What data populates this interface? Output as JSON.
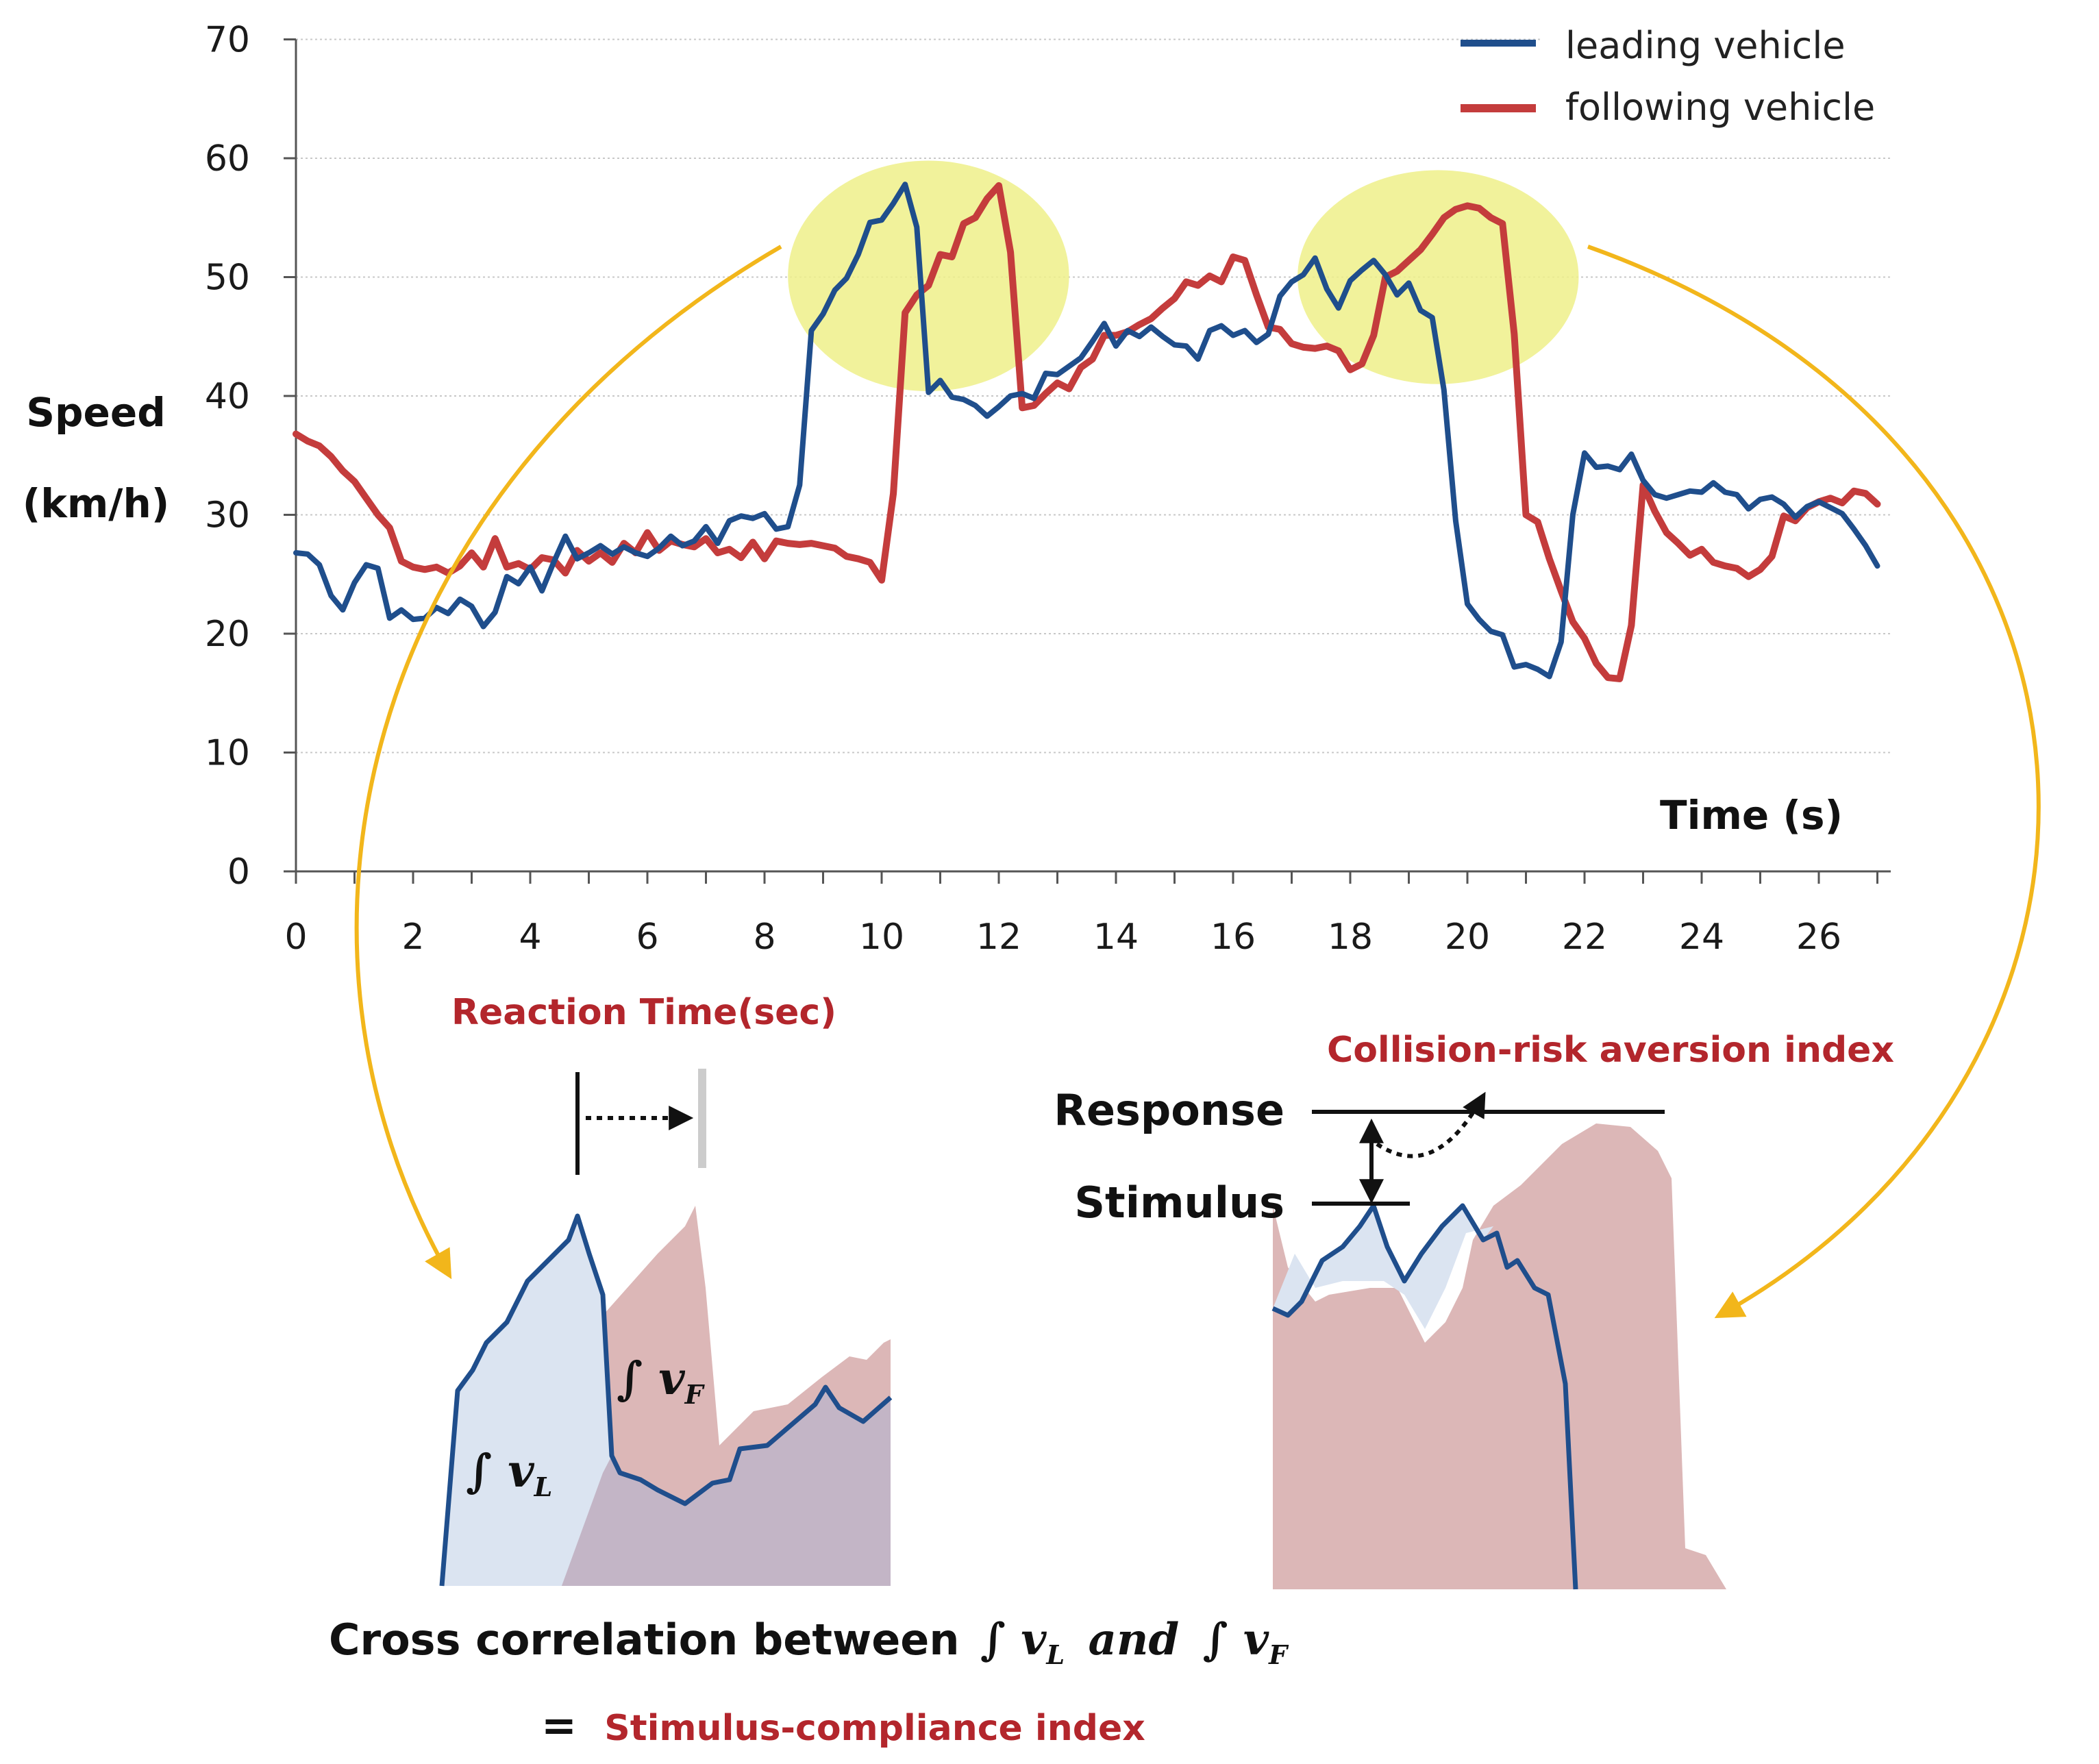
{
  "chart_data": {
    "type": "line",
    "xlabel": "Time (s)",
    "ylabel_line1": "Speed",
    "ylabel_line2": "(km/h)",
    "xlim": [
      0,
      27.2
    ],
    "ylim": [
      0,
      70
    ],
    "xticks": [
      0,
      2,
      4,
      6,
      8,
      10,
      12,
      14,
      16,
      18,
      20,
      22,
      24,
      26
    ],
    "yticks": [
      0,
      10,
      20,
      30,
      40,
      50,
      60,
      70
    ],
    "grid": "horizontal dotted",
    "legend_position": "top-right",
    "series": [
      {
        "name": "leading vehicle",
        "color": "#1f4e8c",
        "points": [
          [
            0,
            26.8
          ],
          [
            0.2,
            26.7
          ],
          [
            0.4,
            25.8
          ],
          [
            0.6,
            23.2
          ],
          [
            0.8,
            22.0
          ],
          [
            1.0,
            24.3
          ],
          [
            1.2,
            25.8
          ],
          [
            1.4,
            25.5
          ],
          [
            1.6,
            21.3
          ],
          [
            1.8,
            22.0
          ],
          [
            2.0,
            21.2
          ],
          [
            2.2,
            21.3
          ],
          [
            2.4,
            22.2
          ],
          [
            2.6,
            21.7
          ],
          [
            2.8,
            22.9
          ],
          [
            3.0,
            22.3
          ],
          [
            3.2,
            20.6
          ],
          [
            3.4,
            21.8
          ],
          [
            3.6,
            24.8
          ],
          [
            3.8,
            24.2
          ],
          [
            4.0,
            25.6
          ],
          [
            4.2,
            23.6
          ],
          [
            4.4,
            26.0
          ],
          [
            4.6,
            28.2
          ],
          [
            4.8,
            26.3
          ],
          [
            5.0,
            26.8
          ],
          [
            5.2,
            27.4
          ],
          [
            5.4,
            26.7
          ],
          [
            5.6,
            27.3
          ],
          [
            5.8,
            26.8
          ],
          [
            6.0,
            26.5
          ],
          [
            6.2,
            27.2
          ],
          [
            6.4,
            28.2
          ],
          [
            6.6,
            27.4
          ],
          [
            6.8,
            27.8
          ],
          [
            7.0,
            29.0
          ],
          [
            7.2,
            27.6
          ],
          [
            7.4,
            29.5
          ],
          [
            7.6,
            29.9
          ],
          [
            7.8,
            29.7
          ],
          [
            8.0,
            30.1
          ],
          [
            8.2,
            28.8
          ],
          [
            8.4,
            29.0
          ],
          [
            8.6,
            32.5
          ],
          [
            8.8,
            45.5
          ],
          [
            9.0,
            46.9
          ],
          [
            9.2,
            48.9
          ],
          [
            9.4,
            49.9
          ],
          [
            9.6,
            51.9
          ],
          [
            9.8,
            54.6
          ],
          [
            10.0,
            54.8
          ],
          [
            10.2,
            56.2
          ],
          [
            10.4,
            57.8
          ],
          [
            10.6,
            54.2
          ],
          [
            10.8,
            40.3
          ],
          [
            11.0,
            41.3
          ],
          [
            11.2,
            39.9
          ],
          [
            11.4,
            39.7
          ],
          [
            11.6,
            39.2
          ],
          [
            11.8,
            38.3
          ],
          [
            12.0,
            39.1
          ],
          [
            12.2,
            40.0
          ],
          [
            12.4,
            40.2
          ],
          [
            12.6,
            39.8
          ],
          [
            12.8,
            41.9
          ],
          [
            13.0,
            41.8
          ],
          [
            13.2,
            42.5
          ],
          [
            13.4,
            43.2
          ],
          [
            13.6,
            44.6
          ],
          [
            13.8,
            46.1
          ],
          [
            14.0,
            44.2
          ],
          [
            14.2,
            45.5
          ],
          [
            14.4,
            45.0
          ],
          [
            14.6,
            45.8
          ],
          [
            14.8,
            45.0
          ],
          [
            15.0,
            44.3
          ],
          [
            15.2,
            44.2
          ],
          [
            15.4,
            43.1
          ],
          [
            15.6,
            45.5
          ],
          [
            15.8,
            45.9
          ],
          [
            16.0,
            45.1
          ],
          [
            16.2,
            45.5
          ],
          [
            16.4,
            44.5
          ],
          [
            16.6,
            45.2
          ],
          [
            16.8,
            48.4
          ],
          [
            17.0,
            49.6
          ],
          [
            17.2,
            50.2
          ],
          [
            17.4,
            51.6
          ],
          [
            17.6,
            49.0
          ],
          [
            17.8,
            47.4
          ],
          [
            18.0,
            49.7
          ],
          [
            18.2,
            50.6
          ],
          [
            18.4,
            51.4
          ],
          [
            18.6,
            50.2
          ],
          [
            18.8,
            48.5
          ],
          [
            19.0,
            49.5
          ],
          [
            19.2,
            47.2
          ],
          [
            19.4,
            46.6
          ],
          [
            19.6,
            40.5
          ],
          [
            19.8,
            29.5
          ],
          [
            20.0,
            22.5
          ],
          [
            20.2,
            21.2
          ],
          [
            20.4,
            20.2
          ],
          [
            20.6,
            19.9
          ],
          [
            20.8,
            17.2
          ],
          [
            21.0,
            17.4
          ],
          [
            21.2,
            17.0
          ],
          [
            21.4,
            16.4
          ],
          [
            21.6,
            19.3
          ],
          [
            21.8,
            30.0
          ],
          [
            22.0,
            35.2
          ],
          [
            22.2,
            34.0
          ],
          [
            22.4,
            34.1
          ],
          [
            22.6,
            33.8
          ],
          [
            22.8,
            35.1
          ],
          [
            23.0,
            32.9
          ],
          [
            23.2,
            31.7
          ],
          [
            23.4,
            31.4
          ],
          [
            23.6,
            31.7
          ],
          [
            23.8,
            32.0
          ],
          [
            24.0,
            31.9
          ],
          [
            24.2,
            32.7
          ],
          [
            24.4,
            31.9
          ],
          [
            24.6,
            31.7
          ],
          [
            24.8,
            30.5
          ],
          [
            25.0,
            31.3
          ],
          [
            25.2,
            31.5
          ],
          [
            25.4,
            30.9
          ],
          [
            25.6,
            29.8
          ],
          [
            25.8,
            30.7
          ],
          [
            26.0,
            31.1
          ],
          [
            26.2,
            30.6
          ],
          [
            26.4,
            30.1
          ],
          [
            26.6,
            28.8
          ],
          [
            26.8,
            27.4
          ],
          [
            27.0,
            25.7
          ]
        ]
      },
      {
        "name": "following vehicle",
        "color": "#c43c3c",
        "points": [
          [
            0,
            36.8
          ],
          [
            0.2,
            36.2
          ],
          [
            0.4,
            35.8
          ],
          [
            0.6,
            34.9
          ],
          [
            0.8,
            33.7
          ],
          [
            1.0,
            32.8
          ],
          [
            1.2,
            31.4
          ],
          [
            1.4,
            30.0
          ],
          [
            1.6,
            28.9
          ],
          [
            1.8,
            26.1
          ],
          [
            2.0,
            25.6
          ],
          [
            2.2,
            25.4
          ],
          [
            2.4,
            25.6
          ],
          [
            2.6,
            25.1
          ],
          [
            2.8,
            25.7
          ],
          [
            3.0,
            26.8
          ],
          [
            3.2,
            25.6
          ],
          [
            3.4,
            28.0
          ],
          [
            3.6,
            25.6
          ],
          [
            3.8,
            25.9
          ],
          [
            4.0,
            25.4
          ],
          [
            4.2,
            26.4
          ],
          [
            4.4,
            26.2
          ],
          [
            4.6,
            25.1
          ],
          [
            4.8,
            27.0
          ],
          [
            5.0,
            26.1
          ],
          [
            5.2,
            26.8
          ],
          [
            5.4,
            26.0
          ],
          [
            5.6,
            27.6
          ],
          [
            5.8,
            26.8
          ],
          [
            6.0,
            28.5
          ],
          [
            6.2,
            27.0
          ],
          [
            6.4,
            27.8
          ],
          [
            6.6,
            27.5
          ],
          [
            6.8,
            27.3
          ],
          [
            7.0,
            28.0
          ],
          [
            7.2,
            26.8
          ],
          [
            7.4,
            27.1
          ],
          [
            7.6,
            26.4
          ],
          [
            7.8,
            27.7
          ],
          [
            8.0,
            26.3
          ],
          [
            8.2,
            27.8
          ],
          [
            8.4,
            27.6
          ],
          [
            8.6,
            27.5
          ],
          [
            8.8,
            27.6
          ],
          [
            9.0,
            27.4
          ],
          [
            9.2,
            27.2
          ],
          [
            9.4,
            26.5
          ],
          [
            9.6,
            26.3
          ],
          [
            9.8,
            26.0
          ],
          [
            10.0,
            24.5
          ],
          [
            10.2,
            31.8
          ],
          [
            10.4,
            47.0
          ],
          [
            10.6,
            48.5
          ],
          [
            10.8,
            49.3
          ],
          [
            11.0,
            51.9
          ],
          [
            11.2,
            51.7
          ],
          [
            11.4,
            54.5
          ],
          [
            11.6,
            55.0
          ],
          [
            11.8,
            56.6
          ],
          [
            12.0,
            57.7
          ],
          [
            12.2,
            52.1
          ],
          [
            12.4,
            39.0
          ],
          [
            12.6,
            39.2
          ],
          [
            12.8,
            40.2
          ],
          [
            13.0,
            41.1
          ],
          [
            13.2,
            40.6
          ],
          [
            13.4,
            42.4
          ],
          [
            13.6,
            43.1
          ],
          [
            13.8,
            45.1
          ],
          [
            14.0,
            45.1
          ],
          [
            14.2,
            45.4
          ],
          [
            14.4,
            46.0
          ],
          [
            14.6,
            46.5
          ],
          [
            14.8,
            47.4
          ],
          [
            15.0,
            48.2
          ],
          [
            15.2,
            49.6
          ],
          [
            15.4,
            49.3
          ],
          [
            15.6,
            50.1
          ],
          [
            15.8,
            49.6
          ],
          [
            16.0,
            51.7
          ],
          [
            16.2,
            51.4
          ],
          [
            16.4,
            48.5
          ],
          [
            16.6,
            45.8
          ],
          [
            16.8,
            45.6
          ],
          [
            17.0,
            44.4
          ],
          [
            17.2,
            44.1
          ],
          [
            17.4,
            44.0
          ],
          [
            17.6,
            44.2
          ],
          [
            17.8,
            43.8
          ],
          [
            18.0,
            42.2
          ],
          [
            18.2,
            42.7
          ],
          [
            18.4,
            45.1
          ],
          [
            18.6,
            50.0
          ],
          [
            18.8,
            50.5
          ],
          [
            19.0,
            51.4
          ],
          [
            19.2,
            52.3
          ],
          [
            19.4,
            53.6
          ],
          [
            19.6,
            55.0
          ],
          [
            19.8,
            55.7
          ],
          [
            20.0,
            56.0
          ],
          [
            20.2,
            55.8
          ],
          [
            20.4,
            55.0
          ],
          [
            20.6,
            54.5
          ],
          [
            20.8,
            45.2
          ],
          [
            21.0,
            30.0
          ],
          [
            21.2,
            29.4
          ],
          [
            21.4,
            26.3
          ],
          [
            21.6,
            23.6
          ],
          [
            21.8,
            21.0
          ],
          [
            22.0,
            19.6
          ],
          [
            22.2,
            17.5
          ],
          [
            22.4,
            16.3
          ],
          [
            22.6,
            16.2
          ],
          [
            22.8,
            20.7
          ],
          [
            23.0,
            32.5
          ],
          [
            23.2,
            30.3
          ],
          [
            23.4,
            28.5
          ],
          [
            23.6,
            27.6
          ],
          [
            23.8,
            26.6
          ],
          [
            24.0,
            27.1
          ],
          [
            24.2,
            26.0
          ],
          [
            24.4,
            25.7
          ],
          [
            24.6,
            25.5
          ],
          [
            24.8,
            24.8
          ],
          [
            25.0,
            25.4
          ],
          [
            25.2,
            26.5
          ],
          [
            25.4,
            29.9
          ],
          [
            25.6,
            29.5
          ],
          [
            25.8,
            30.6
          ],
          [
            26.0,
            31.1
          ],
          [
            26.2,
            31.4
          ],
          [
            26.4,
            31.0
          ],
          [
            26.6,
            32.0
          ],
          [
            26.8,
            31.8
          ],
          [
            27.0,
            30.9
          ]
        ]
      }
    ],
    "highlight_regions": [
      {
        "x_center": 10.8,
        "y_center": 50.1,
        "rx": 2.4,
        "ry": 9.7
      },
      {
        "x_center": 19.5,
        "y_center": 50.0,
        "rx": 2.4,
        "ry": 9.0
      }
    ],
    "annotations": {
      "reaction_time_label": "Reaction Time(sec)",
      "collision_index_label": "Collision-risk aversion index",
      "response_label": "Response",
      "stimulus_label": "Stimulus",
      "integral_vL": "∫ v",
      "integral_vF": "∫ v",
      "subscript_L": "L",
      "subscript_F": "F",
      "cross_correlation_prefix": "Cross correlation between",
      "cross_correlation_and": "and",
      "equals": "=",
      "stimulus_compliance_label": "Stimulus-compliance index"
    },
    "colors": {
      "leading": "#1f4e8c",
      "following": "#c43c3c",
      "highlight": "#eef08a",
      "arrow": "#f2b61b",
      "annotation_red": "#b3262c",
      "fill_leading": "#dbe4f1",
      "fill_following": "#dcb7b7",
      "fill_overlap": "#c3b5c6"
    }
  }
}
